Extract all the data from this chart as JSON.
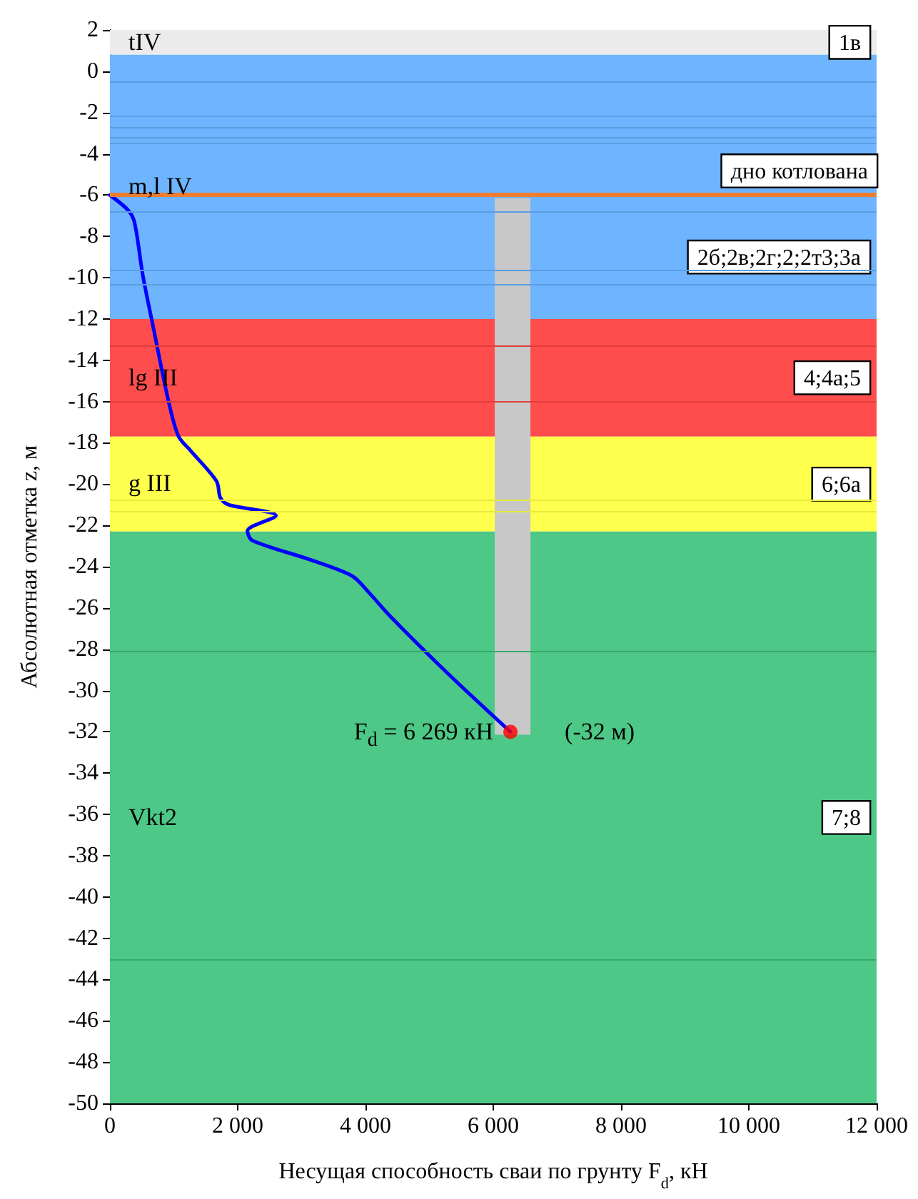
{
  "chart_data": {
    "type": "line",
    "xlabel": "Несущая способность сваи по грунту F$_{d}$, кН",
    "ylabel": "Абсолютная отметка z, м",
    "xlim": [
      0,
      12000
    ],
    "xticks": [
      0,
      {
        "value": 2000,
        "label": "2 000"
      },
      {
        "value": 4000,
        "label": "4 000"
      },
      {
        "value": 6000,
        "label": "6 000"
      },
      {
        "value": 8000,
        "label": "8 000"
      },
      {
        "value": 10000,
        "label": "10 000"
      },
      {
        "value": 12000,
        "label": "12 000"
      }
    ],
    "ylim": [
      -50,
      2
    ],
    "yticks": [
      -50,
      -48,
      -46,
      -44,
      -42,
      -40,
      -38,
      -36,
      -34,
      -32,
      -30,
      -28,
      -26,
      -24,
      -22,
      -20,
      -18,
      -16,
      -14,
      -12,
      -10,
      -8,
      -6,
      -4,
      -2,
      0,
      2
    ],
    "series": [
      {
        "color": "#0000ff",
        "marker": "none",
        "x": [
          0,
          290,
          387,
          514,
          663,
          923,
          1073,
          1259,
          1669,
          1728,
          1855,
          2599,
          2152,
          2227,
          3121,
          3791,
          4052,
          4387,
          5281,
          6269
        ],
        "values": [
          -6,
          -6.75,
          -7.35,
          -9.87,
          -12.17,
          -16.07,
          -17.68,
          -18.37,
          -19.86,
          -20.66,
          -21.0,
          -21.53,
          -22.27,
          -22.73,
          -23.65,
          -24.45,
          -25.25,
          -26.4,
          -29.15,
          -32
        ]
      },
      {
        "type": "scatter",
        "color": "#ff0000",
        "marker": "circle",
        "x": [
          6269
        ],
        "values": [
          -32
        ]
      }
    ],
    "bands": [
      {
        "axis": "y",
        "from": 2,
        "to": 0.8,
        "label": "1в",
        "color": "#ebebeb"
      },
      {
        "axis": "y",
        "from": 0.8,
        "to": -6,
        "color": "#6eb4ff"
      },
      {
        "axis": "y",
        "from": -6,
        "to": -12,
        "label": "2б;2в;2г;2;2т3;3а",
        "color": "#6eb4ff"
      },
      {
        "axis": "y",
        "from": -12,
        "to": -17.7,
        "label": "4;4а;5",
        "color": "#ff4d4d"
      },
      {
        "axis": "y",
        "from": -17.7,
        "to": -22.3,
        "label": "6;6а",
        "color": "#ffff4d"
      },
      {
        "axis": "y",
        "from": -22.3,
        "to": -50,
        "label": "7;8",
        "color": "#4dc886"
      }
    ],
    "ref_lines": [
      {
        "axis": "y",
        "value": -6,
        "label": "дно котлована",
        "color": "#ed7d31"
      },
      {
        "axis": "y",
        "value": -0.5,
        "color": "#5a9ee0"
      },
      {
        "axis": "y",
        "value": -2.2,
        "color": "#5a9ee0"
      },
      {
        "axis": "y",
        "value": -2.7,
        "color": "#5a9ee0"
      },
      {
        "axis": "y",
        "value": -3.2,
        "color": "#5a9ee0"
      },
      {
        "axis": "y",
        "value": -3.5,
        "color": "#5a9ee0"
      },
      {
        "axis": "y",
        "value": -6.8,
        "color": "#5a9ee0"
      },
      {
        "axis": "y",
        "value": -9.6,
        "color": "#5a9ee0"
      },
      {
        "axis": "y",
        "value": -10.3,
        "color": "#5a9ee0"
      },
      {
        "axis": "y",
        "value": -13.3,
        "color": "#e03c3c"
      },
      {
        "axis": "y",
        "value": -16.0,
        "color": "#e03c3c"
      },
      {
        "axis": "y",
        "value": -20.8,
        "color": "#e8e83c"
      },
      {
        "axis": "y",
        "value": -21.3,
        "color": "#e8e83c"
      },
      {
        "axis": "y",
        "value": -28.1,
        "color": "#3aa86a"
      },
      {
        "axis": "y",
        "value": -43.0,
        "color": "#3aa86a"
      }
    ],
    "annotations": [
      "tIV",
      "m,l IV",
      "lg III",
      "g III",
      "Vkt2",
      {
        "text": "F$_{d}$ = 6 269  кН",
        "x": 6269,
        "y": -32
      },
      "(-32 м)"
    ]
  }
}
